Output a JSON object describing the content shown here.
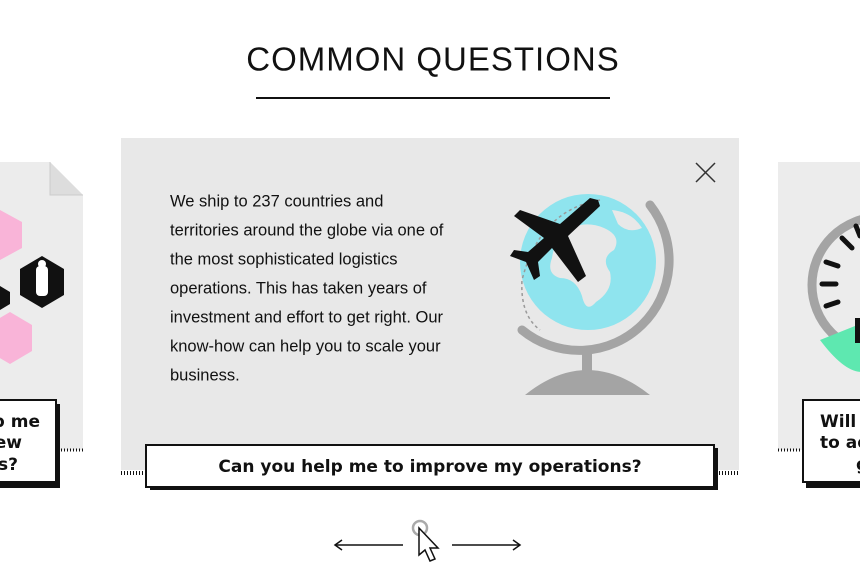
{
  "header": {
    "title": "COMMON QUESTIONS"
  },
  "left_card": {
    "question_lines": [
      "p me",
      "ew",
      "s?"
    ]
  },
  "main_card": {
    "body_lines": [
      "We ship to 237 countries and",
      "territories around the globe via one of",
      "the most sophisticated logistics",
      "operations. This has taken years of",
      "investment and effort to get right. Our",
      "know-how can help you to scale your",
      "business."
    ],
    "question": "Can you help me to improve my operations?"
  },
  "right_card": {
    "question_lines": [
      "Will",
      "to ad",
      "g"
    ]
  }
}
